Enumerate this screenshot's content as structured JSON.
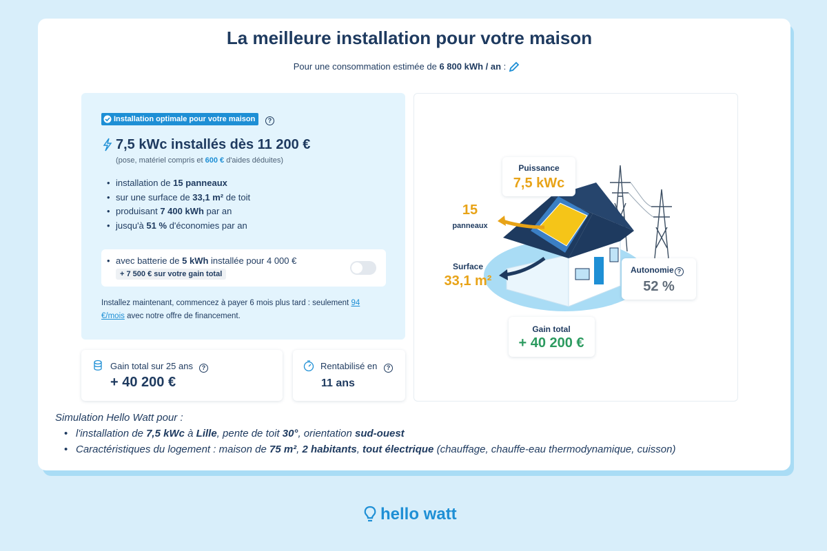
{
  "header": {
    "title": "La meilleure installation pour votre maison",
    "subtitle": [
      "Pour une consommation estimée de ",
      "6 800 kWh / an",
      " :"
    ]
  },
  "offer": {
    "badge": "Installation optimale pour votre maison",
    "headline": "7,5 kWc installés dès 11 200 €",
    "note": [
      "(pose, matériel compris et ",
      "600 €",
      " d'aides déduites)"
    ],
    "features": [
      [
        "installation de ",
        "15 panneaux"
      ],
      [
        "sur une surface de ",
        "33,1 m²",
        " de toit"
      ],
      [
        "produisant ",
        "7 400 kWh",
        " par an"
      ],
      [
        "jusqu'à ",
        "51 %",
        " d'économies par an"
      ]
    ],
    "battery": {
      "text": [
        "avec batterie de ",
        "5 kWh",
        " installée pour 4 000 €"
      ],
      "tag": "+ 7 500 € sur votre gain total"
    },
    "financing": [
      "Installez maintenant, commencez à payer 6 mois plus tard : seulement ",
      "94 €/mois",
      " avec notre offre de financement."
    ]
  },
  "stats": [
    {
      "label": "Gain total sur 25 ans",
      "value": "+ 40 200 €"
    },
    {
      "label": "Rentabilisé en",
      "value": "11 ans"
    }
  ],
  "illustration": {
    "power": {
      "label": "Puissance",
      "value": "7,5 kWc"
    },
    "panels": {
      "value": "15",
      "label": "panneaux"
    },
    "surface": {
      "label": "Surface",
      "value": "33,1 m²"
    },
    "autonomy": {
      "label": "Autonomie",
      "value": "52 %"
    },
    "gain": {
      "label": "Gain total",
      "value": "+ 40 200 €"
    }
  },
  "footnote": {
    "intro": "Simulation Hello Watt pour :",
    "items": [
      [
        "l'installation de ",
        "7,5 kWc",
        " à ",
        "Lille",
        ", pente de toit ",
        "30°",
        ", orientation ",
        "sud-ouest"
      ],
      [
        "Caractéristiques du logement : maison de ",
        "75 m²",
        ", ",
        "2 habitants",
        ", ",
        "tout électrique",
        " (chauffage, chauffe-eau thermodynamique, cuisson)"
      ]
    ]
  },
  "logo": "hello watt"
}
